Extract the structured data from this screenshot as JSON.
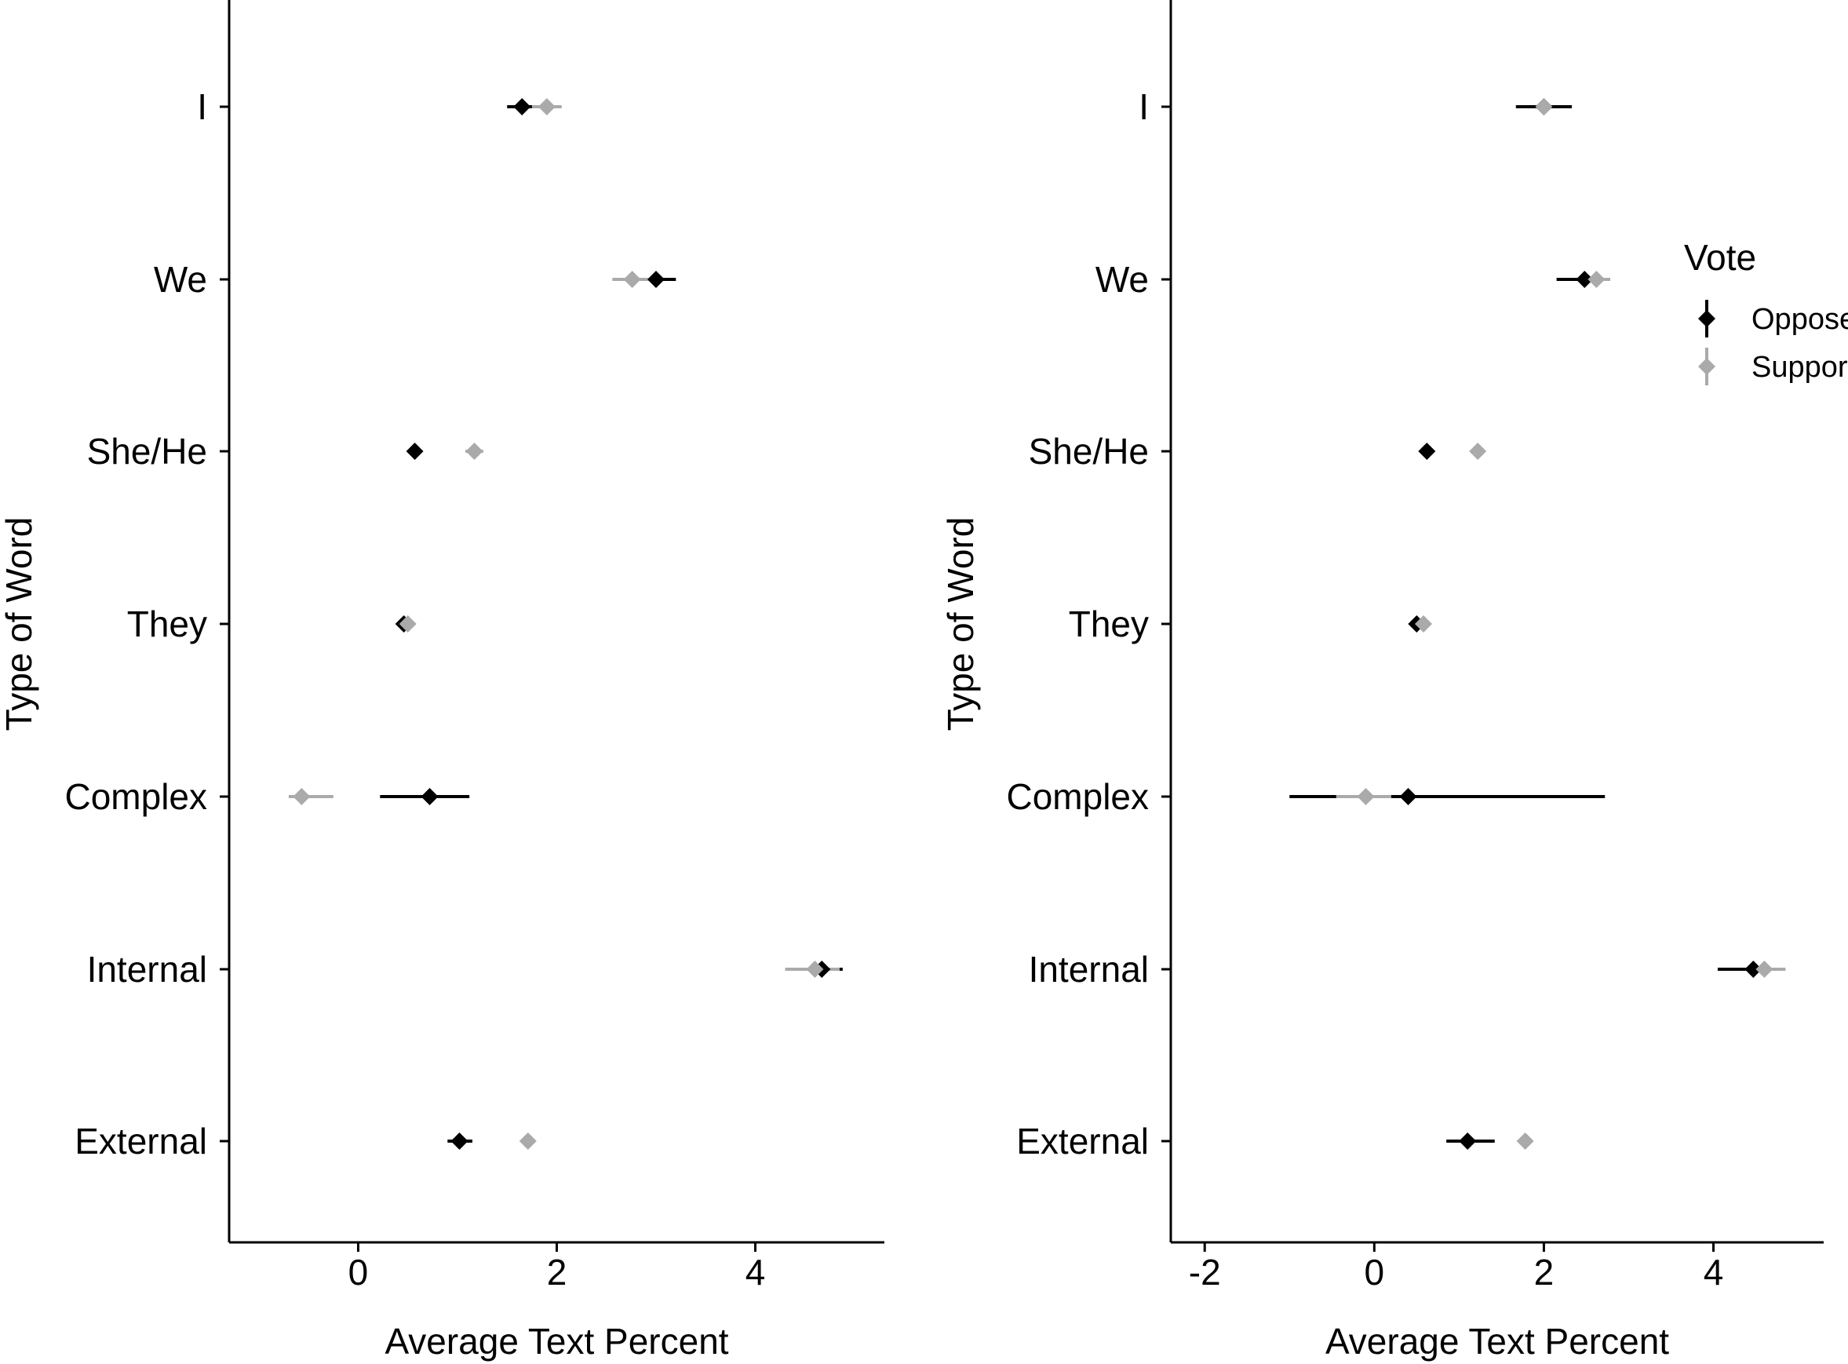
{
  "chart_data": [
    {
      "type": "scatter",
      "title": "",
      "xlabel": "Average Text Percent",
      "ylabel": "Type of Word",
      "xlim": [
        -1.3,
        5.3
      ],
      "xticks": [
        0,
        2,
        4
      ],
      "xtick_labels": [
        "0",
        "2",
        "4"
      ],
      "categories": [
        "I",
        "We",
        "She/He",
        "They",
        "Complex",
        "Internal",
        "External"
      ],
      "series": [
        {
          "name": "Oppose",
          "values": [
            1.65,
            3.0,
            0.57,
            0.46,
            0.72,
            4.67,
            1.02
          ],
          "ci_low": [
            1.5,
            2.8,
            0.5,
            0.4,
            0.22,
            4.5,
            0.9
          ],
          "ci_high": [
            1.8,
            3.2,
            0.63,
            0.52,
            1.12,
            4.88,
            1.15
          ]
        },
        {
          "name": "Support",
          "values": [
            1.9,
            2.76,
            1.17,
            0.5,
            -0.57,
            4.6,
            1.71
          ],
          "ci_low": [
            1.75,
            2.56,
            1.08,
            0.44,
            -0.7,
            4.3,
            1.64
          ],
          "ci_high": [
            2.05,
            2.96,
            1.26,
            0.56,
            -0.25,
            4.85,
            1.78
          ]
        }
      ]
    },
    {
      "type": "scatter",
      "title": "",
      "xlabel": "Average Text Percent",
      "ylabel": "Type of Word",
      "xlim": [
        -2.4,
        5.3
      ],
      "xticks": [
        -2,
        0,
        2,
        4
      ],
      "xtick_labels": [
        "-2",
        "0",
        "2",
        "4"
      ],
      "categories": [
        "I",
        "We",
        "She/He",
        "They",
        "Complex",
        "Internal",
        "External"
      ],
      "series": [
        {
          "name": "Oppose",
          "values": [
            2.0,
            2.48,
            0.62,
            0.5,
            0.4,
            4.47,
            1.1
          ],
          "ci_low": [
            1.67,
            2.15,
            0.55,
            0.45,
            -1.0,
            4.05,
            0.85
          ],
          "ci_high": [
            2.33,
            2.78,
            0.69,
            0.55,
            2.72,
            4.78,
            1.42
          ]
        },
        {
          "name": "Support",
          "values": [
            2.0,
            2.62,
            1.22,
            0.58,
            -0.1,
            4.6,
            1.78
          ],
          "ci_low": [
            1.92,
            2.48,
            1.14,
            0.5,
            -0.45,
            4.4,
            1.72
          ],
          "ci_high": [
            2.08,
            2.78,
            1.3,
            0.66,
            0.2,
            4.85,
            1.84
          ]
        }
      ]
    }
  ],
  "legend": {
    "title": "Vote",
    "items": [
      {
        "label": "Oppose",
        "color": "#000000"
      },
      {
        "label": "Support",
        "color": "#aaaaaa"
      }
    ]
  },
  "colors": {
    "Oppose": "#000000",
    "Support": "#aaaaaa"
  }
}
